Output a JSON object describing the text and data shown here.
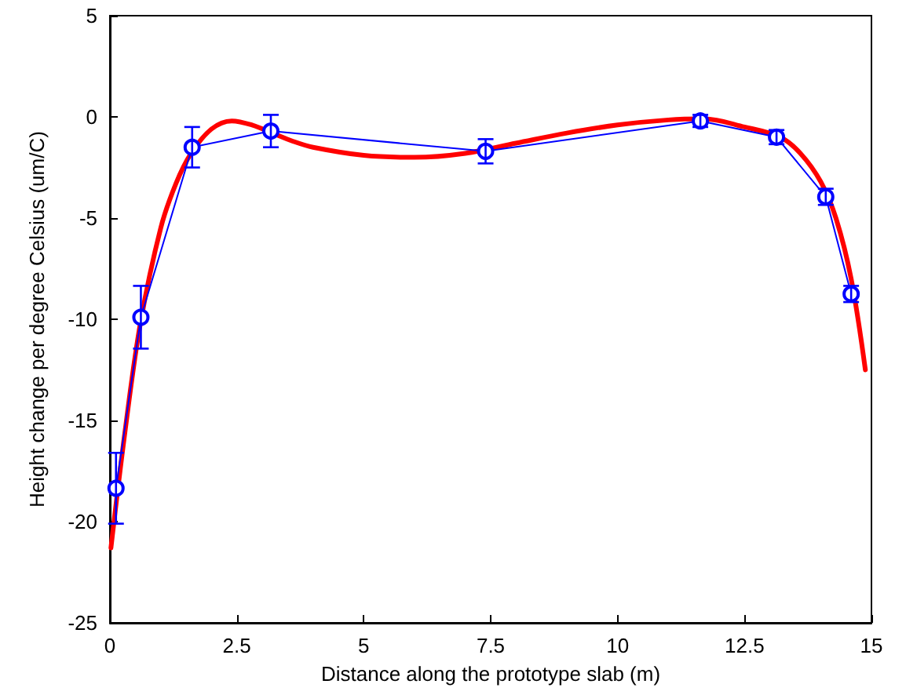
{
  "chart_data": {
    "type": "line",
    "xlabel": "Distance along the prototype slab (m)",
    "ylabel": "Height change per degree Celsius (um/C)",
    "xlim": [
      0,
      15
    ],
    "xticks": [
      0,
      2.5,
      5,
      7.5,
      10,
      12.5,
      15
    ],
    "ylim": [
      -25,
      5
    ],
    "yticks": [
      -25,
      -20,
      -15,
      -10,
      -5,
      0,
      5
    ],
    "grid": false,
    "series": [
      {
        "color": "#0000ff",
        "marker": "circle",
        "x": [
          0.12,
          0.61,
          1.62,
          3.17,
          7.4,
          11.63,
          13.13,
          14.1,
          14.6
        ],
        "values": [
          -18.35,
          -9.9,
          -1.5,
          -0.7,
          -1.7,
          -0.2,
          -1.0,
          -3.95,
          -8.75
        ],
        "errors": [
          1.75,
          1.55,
          1.0,
          0.8,
          0.6,
          0.3,
          0.35,
          0.4,
          0.4
        ]
      },
      {
        "color": "#ff0000",
        "marker": "none",
        "x": [
          0.02,
          0.3,
          0.6,
          1.0,
          1.3,
          1.6,
          2.0,
          2.4,
          2.8,
          3.2,
          3.6,
          4.0,
          5.0,
          6.0,
          7.0,
          8.0,
          9.0,
          10.0,
          11.0,
          11.7,
          12.5,
          13.2,
          13.6,
          14.0,
          14.3,
          14.6,
          14.88
        ],
        "values": [
          -21.3,
          -15.5,
          -10.2,
          -5.5,
          -3.3,
          -1.8,
          -0.6,
          -0.2,
          -0.4,
          -0.8,
          -1.2,
          -1.5,
          -1.9,
          -2.0,
          -1.8,
          -1.3,
          -0.8,
          -0.4,
          -0.15,
          -0.1,
          -0.5,
          -1.0,
          -1.8,
          -3.2,
          -5.0,
          -8.0,
          -12.5
        ]
      }
    ]
  }
}
